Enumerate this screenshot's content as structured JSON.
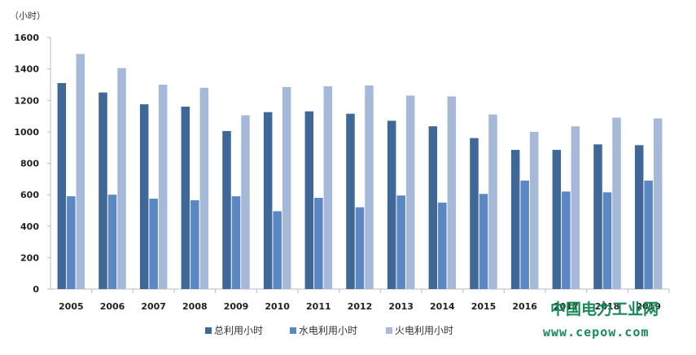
{
  "chart_data": {
    "type": "bar",
    "ylabel": "（小时）",
    "ylim": [
      0,
      1600
    ],
    "yticks": [
      0,
      200,
      400,
      600,
      800,
      1000,
      1200,
      1400,
      1600
    ],
    "categories": [
      "2005",
      "2006",
      "2007",
      "2008",
      "2009",
      "2010",
      "2011",
      "2012",
      "2013",
      "2014",
      "2015",
      "2016",
      "2017",
      "2018",
      "2019"
    ],
    "series": [
      {
        "name": "总利用小时",
        "color": "#3f6797",
        "values": [
          1310,
          1250,
          1175,
          1160,
          1005,
          1125,
          1130,
          1115,
          1070,
          1035,
          960,
          885,
          885,
          920,
          915
        ]
      },
      {
        "name": "水电利用小时",
        "color": "#5b87c5",
        "values": [
          590,
          600,
          575,
          565,
          590,
          495,
          580,
          520,
          595,
          550,
          605,
          690,
          620,
          615,
          690
        ]
      },
      {
        "name": "火电利用小时",
        "color": "#a7b9d8",
        "values": [
          1495,
          1405,
          1300,
          1280,
          1105,
          1285,
          1290,
          1295,
          1230,
          1225,
          1110,
          1000,
          1035,
          1090,
          1085
        ]
      }
    ],
    "grid": false,
    "legend": "bottom"
  },
  "watermark": {
    "text": "中国电力工业网",
    "url": "www.cepow.com"
  }
}
